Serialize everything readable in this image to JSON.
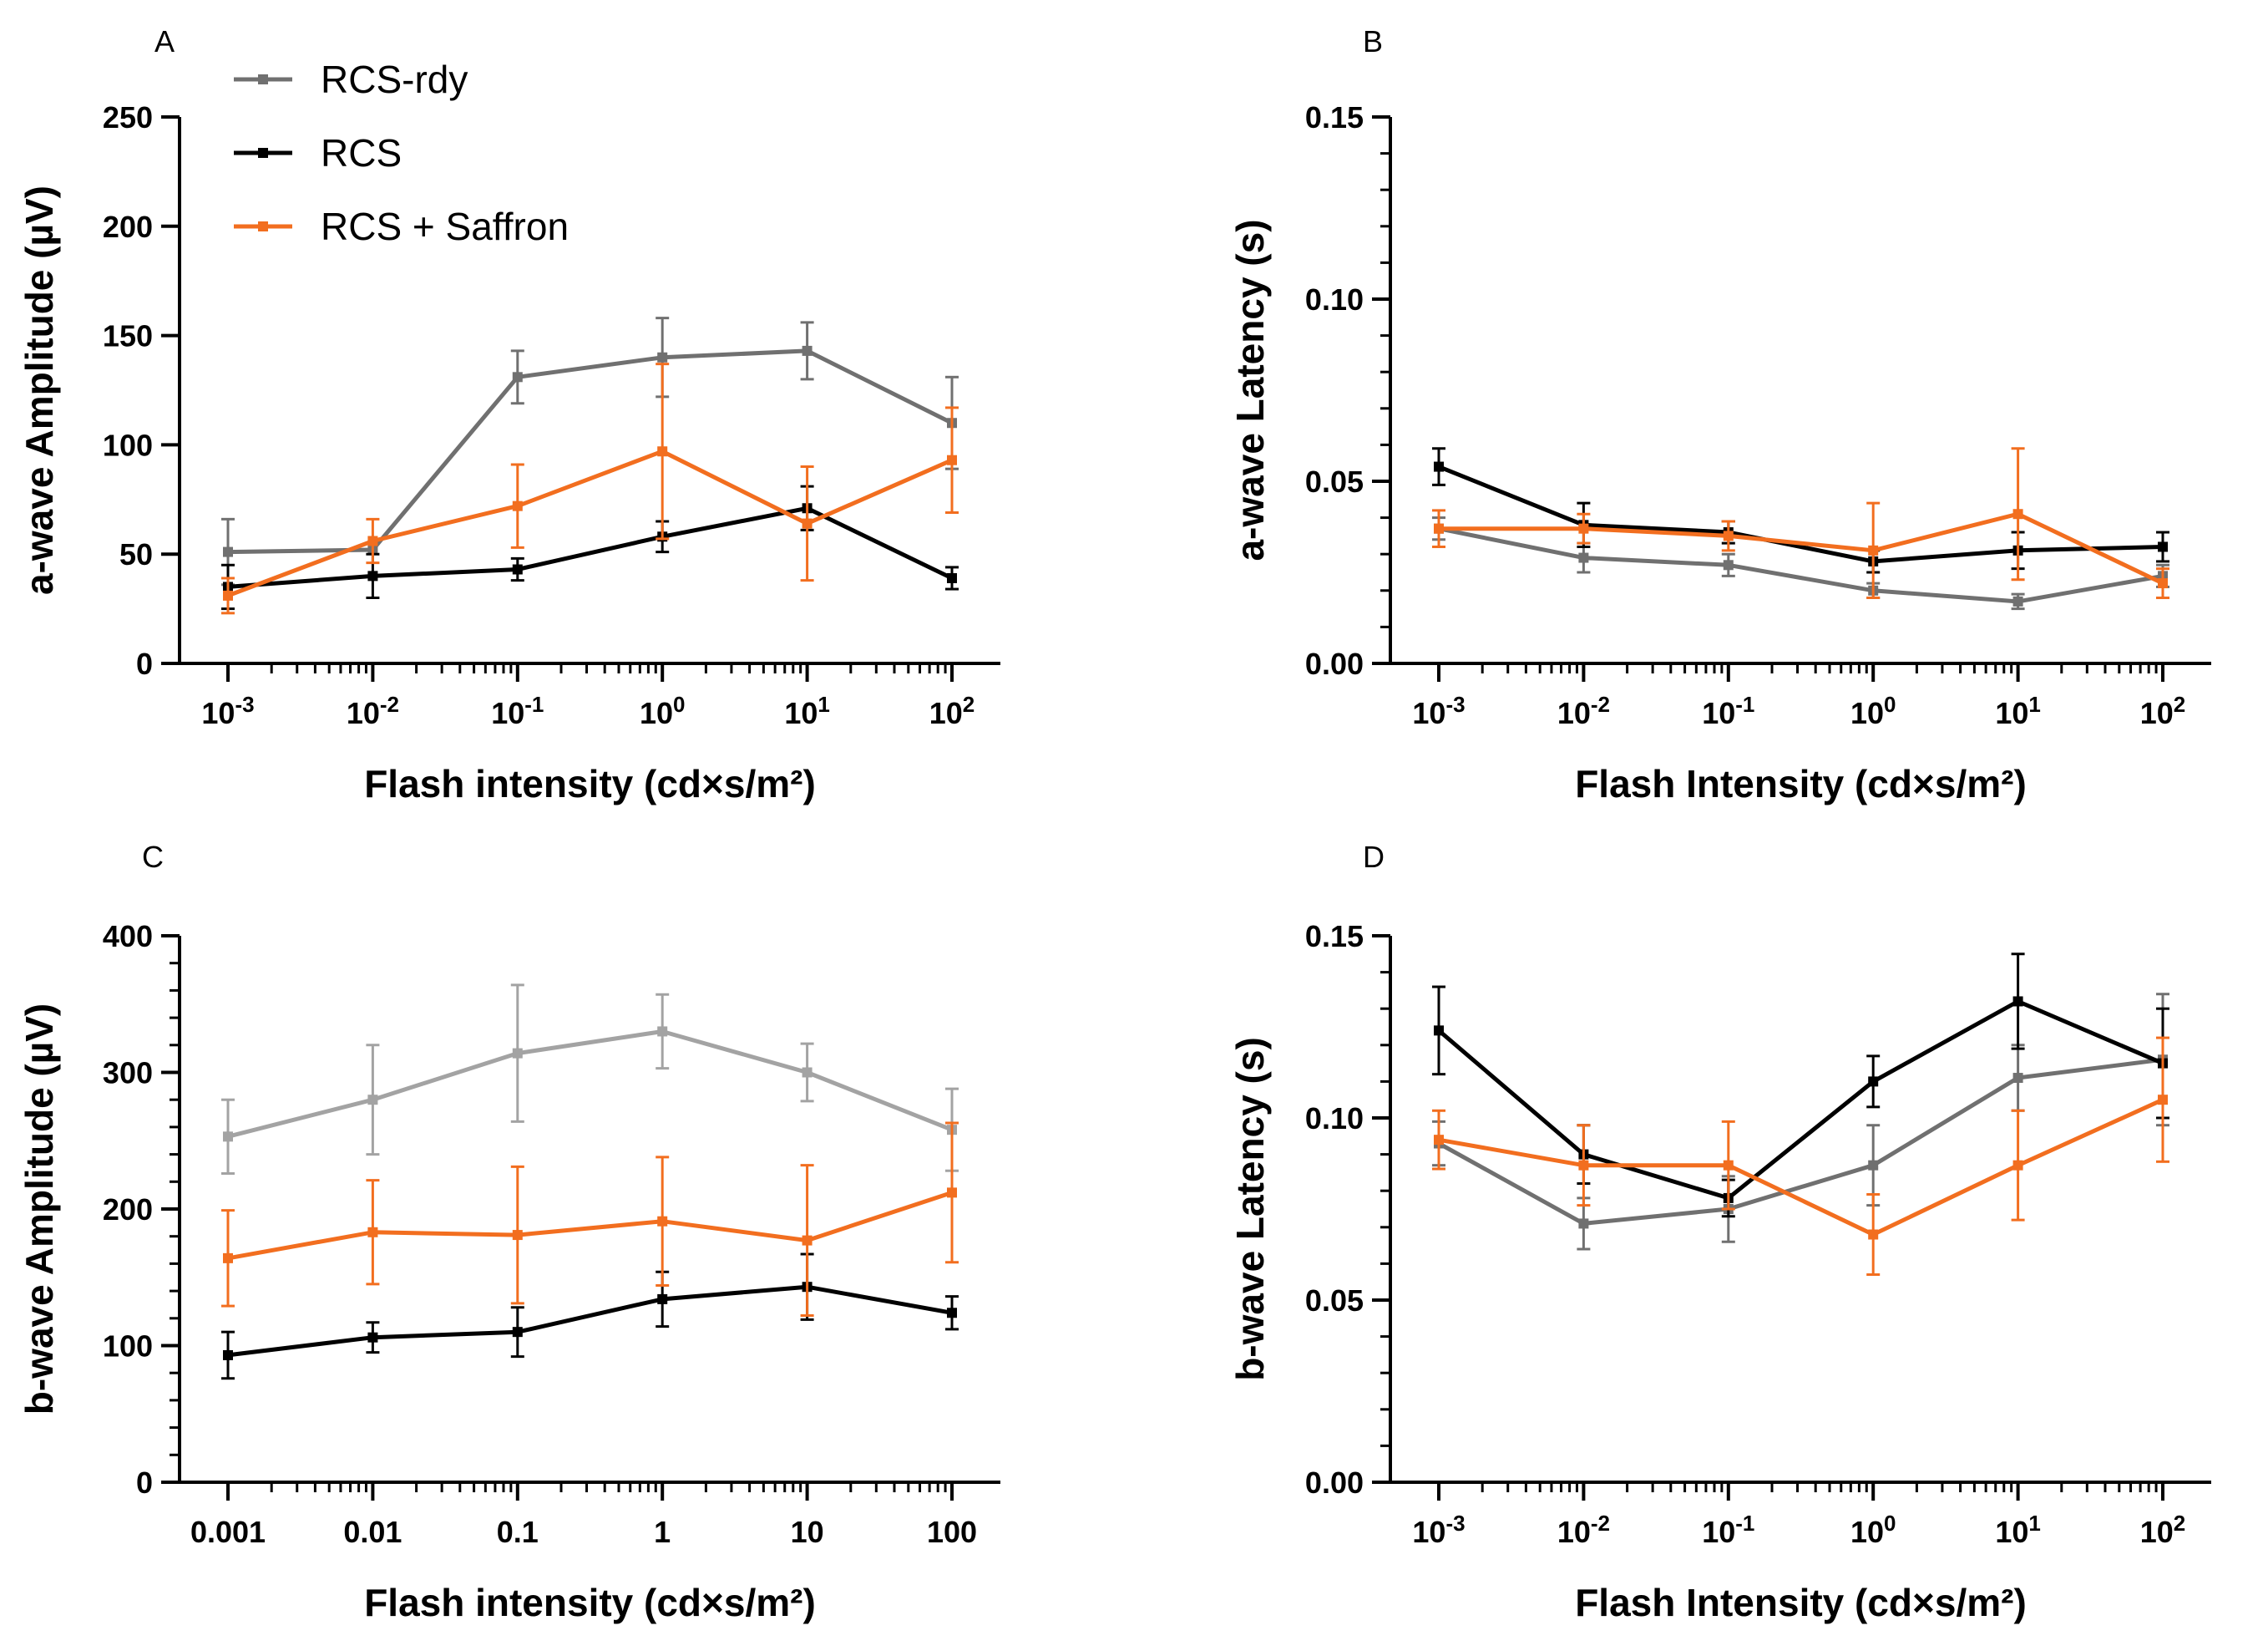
{
  "legend": [
    {
      "name": "RCS-rdy",
      "color": "#707070"
    },
    {
      "name": "RCS",
      "color": "#000000"
    },
    {
      "name": "RCS + Saffron",
      "color": "#f26e1f"
    }
  ],
  "chart_data": [
    {
      "panel": "A",
      "type": "line",
      "xlabel": "Flash intensity (cd×s/m²)",
      "ylabel": "a-wave Amplitude (µV)",
      "x": [
        0.001,
        0.01,
        0.1,
        1,
        10,
        100
      ],
      "x_ticks": [
        {
          "base": "10",
          "exp": "-3"
        },
        {
          "base": "10",
          "exp": "-2"
        },
        {
          "base": "10",
          "exp": "-1"
        },
        {
          "base": "10",
          "exp": "0"
        },
        {
          "base": "10",
          "exp": "1"
        },
        {
          "base": "10",
          "exp": "2"
        }
      ],
      "y_ticks": [
        "0",
        "50",
        "100",
        "150",
        "200",
        "250"
      ],
      "ylim": [
        0,
        250
      ],
      "y_minor": false,
      "series": [
        {
          "name": "RCS-rdy",
          "color": "#707070",
          "values": [
            51,
            52,
            131,
            140,
            143,
            110
          ],
          "err": [
            15,
            0,
            12,
            18,
            13,
            21
          ]
        },
        {
          "name": "RCS",
          "color": "#000000",
          "values": [
            35,
            40,
            43,
            58,
            71,
            39
          ],
          "err": [
            10,
            10,
            5,
            7,
            10,
            5
          ]
        },
        {
          "name": "RCS + Saffron",
          "color": "#f26e1f",
          "values": [
            31,
            56,
            72,
            97,
            64,
            93
          ],
          "err": [
            8,
            10,
            19,
            40,
            26,
            24
          ]
        }
      ]
    },
    {
      "panel": "B",
      "type": "line",
      "xlabel": "Flash Intensity (cd×s/m²)",
      "ylabel": "a-wave Latency (s)",
      "x": [
        0.001,
        0.01,
        0.1,
        1,
        10,
        100
      ],
      "x_ticks": [
        {
          "base": "10",
          "exp": "-3"
        },
        {
          "base": "10",
          "exp": "-2"
        },
        {
          "base": "10",
          "exp": "-1"
        },
        {
          "base": "10",
          "exp": "0"
        },
        {
          "base": "10",
          "exp": "1"
        },
        {
          "base": "10",
          "exp": "2"
        }
      ],
      "y_ticks": [
        "0.00",
        "0.05",
        "0.10",
        "0.15"
      ],
      "ylim": [
        0,
        0.15
      ],
      "y_minor": true,
      "series": [
        {
          "name": "RCS-rdy",
          "color": "#707070",
          "values": [
            0.037,
            0.029,
            0.027,
            0.02,
            0.017,
            0.024
          ],
          "err": [
            0.003,
            0.004,
            0.003,
            0.002,
            0.002,
            0.003
          ]
        },
        {
          "name": "RCS",
          "color": "#000000",
          "values": [
            0.054,
            0.038,
            0.036,
            0.028,
            0.031,
            0.032
          ],
          "err": [
            0.005,
            0.006,
            0.003,
            0.003,
            0.005,
            0.004
          ]
        },
        {
          "name": "RCS + Saffron",
          "color": "#f26e1f",
          "values": [
            0.037,
            0.037,
            0.035,
            0.031,
            0.041,
            0.022
          ],
          "err": [
            0.005,
            0.004,
            0.004,
            0.013,
            0.018,
            0.004
          ]
        }
      ]
    },
    {
      "panel": "C",
      "type": "line",
      "xlabel": "Flash intensity (cd×s/m²)",
      "ylabel": "b-wave Amplitude (µV)",
      "x": [
        0.001,
        0.01,
        0.1,
        1,
        10,
        100
      ],
      "x_ticks": [
        {
          "base": "0.001",
          "exp": ""
        },
        {
          "base": "0.01",
          "exp": ""
        },
        {
          "base": "0.1",
          "exp": ""
        },
        {
          "base": "1",
          "exp": ""
        },
        {
          "base": "10",
          "exp": ""
        },
        {
          "base": "100",
          "exp": ""
        }
      ],
      "y_ticks": [
        "0",
        "100",
        "200",
        "300",
        "400"
      ],
      "ylim": [
        0,
        400
      ],
      "y_minor": true,
      "series": [
        {
          "name": "RCS-rdy",
          "color": "#a3a3a3",
          "values": [
            253,
            280,
            314,
            330,
            300,
            258
          ],
          "err": [
            27,
            40,
            50,
            27,
            21,
            30
          ]
        },
        {
          "name": "RCS",
          "color": "#000000",
          "values": [
            93,
            106,
            110,
            134,
            143,
            124
          ],
          "err": [
            17,
            11,
            18,
            20,
            24,
            12
          ]
        },
        {
          "name": "RCS + Saffron",
          "color": "#f26e1f",
          "values": [
            164,
            183,
            181,
            191,
            177,
            212
          ],
          "err": [
            35,
            38,
            50,
            47,
            55,
            51
          ]
        }
      ]
    },
    {
      "panel": "D",
      "type": "line",
      "xlabel": "Flash Intensity (cd×s/m²)",
      "ylabel": "b-wave Latency (s)",
      "x": [
        0.001,
        0.01,
        0.1,
        1,
        10,
        100
      ],
      "x_ticks": [
        {
          "base": "10",
          "exp": "-3"
        },
        {
          "base": "10",
          "exp": "-2"
        },
        {
          "base": "10",
          "exp": "-1"
        },
        {
          "base": "10",
          "exp": "0"
        },
        {
          "base": "10",
          "exp": "1"
        },
        {
          "base": "10",
          "exp": "2"
        }
      ],
      "y_ticks": [
        "0.00",
        "0.05",
        "0.10",
        "0.15"
      ],
      "ylim": [
        0,
        0.15
      ],
      "y_minor": true,
      "series": [
        {
          "name": "RCS-rdy",
          "color": "#707070",
          "values": [
            0.093,
            0.071,
            0.075,
            0.087,
            0.111,
            0.116
          ],
          "err": [
            0.006,
            0.007,
            0.009,
            0.011,
            0.009,
            0.018
          ]
        },
        {
          "name": "RCS",
          "color": "#000000",
          "values": [
            0.124,
            0.09,
            0.078,
            0.11,
            0.132,
            0.115
          ],
          "err": [
            0.012,
            0.008,
            0.005,
            0.007,
            0.013,
            0.015
          ]
        },
        {
          "name": "RCS + Saffron",
          "color": "#f26e1f",
          "values": [
            0.094,
            0.087,
            0.087,
            0.068,
            0.087,
            0.105
          ],
          "err": [
            0.008,
            0.011,
            0.012,
            0.011,
            0.015,
            0.017
          ]
        }
      ]
    }
  ]
}
